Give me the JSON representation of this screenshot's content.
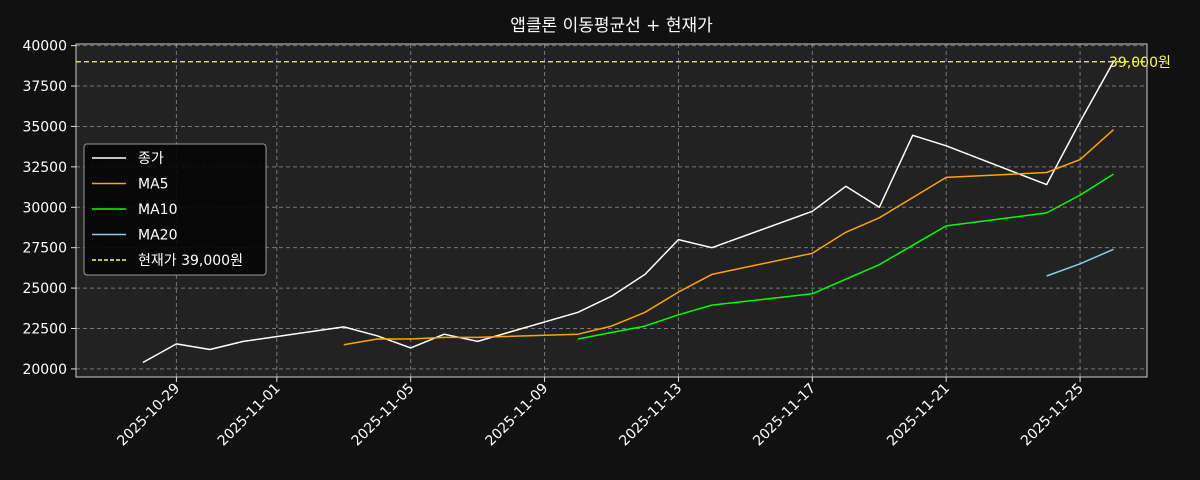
{
  "chart_data": {
    "type": "line",
    "title": "앱클론 이동평균선 + 현재가",
    "xlabel": "",
    "ylabel": "",
    "x_ticks": [
      "2025-10-29",
      "2025-11-01",
      "2025-11-05",
      "2025-11-09",
      "2025-11-13",
      "2025-11-17",
      "2025-11-21",
      "2025-11-25"
    ],
    "y_ticks": [
      20000,
      22500,
      25000,
      27500,
      30000,
      32500,
      35000,
      37500,
      40000
    ],
    "xlim": [
      "2025-10-26",
      "2025-11-27"
    ],
    "ylim": [
      19500,
      40100
    ],
    "grid": true,
    "legend_position": "center-left",
    "background": "#111111",
    "plot_background": "#222222",
    "series": [
      {
        "name": "종가",
        "color": "#ffffff",
        "points": [
          [
            "2025-10-28",
            20400
          ],
          [
            "2025-10-29",
            21550
          ],
          [
            "2025-10-30",
            21200
          ],
          [
            "2025-10-31",
            21700
          ],
          [
            "2025-11-03",
            22600
          ],
          [
            "2025-11-04",
            22050
          ],
          [
            "2025-11-05",
            21300
          ],
          [
            "2025-11-06",
            22150
          ],
          [
            "2025-11-07",
            21700
          ],
          [
            "2025-11-10",
            23500
          ],
          [
            "2025-11-11",
            24500
          ],
          [
            "2025-11-12",
            25850
          ],
          [
            "2025-11-13",
            28000
          ],
          [
            "2025-11-14",
            27500
          ],
          [
            "2025-11-17",
            29750
          ],
          [
            "2025-11-18",
            31300
          ],
          [
            "2025-11-19",
            30000
          ],
          [
            "2025-11-20",
            34450
          ],
          [
            "2025-11-21",
            33800
          ],
          [
            "2025-11-24",
            31400
          ],
          [
            "2025-11-25",
            35300
          ],
          [
            "2025-11-26",
            39000
          ]
        ]
      },
      {
        "name": "MA5",
        "color": "#ffa500",
        "points": [
          [
            "2025-11-03",
            21500
          ],
          [
            "2025-11-04",
            21850
          ],
          [
            "2025-11-05",
            21850
          ],
          [
            "2025-11-06",
            21950
          ],
          [
            "2025-11-07",
            21950
          ],
          [
            "2025-11-10",
            22150
          ],
          [
            "2025-11-11",
            22650
          ],
          [
            "2025-11-12",
            23500
          ],
          [
            "2025-11-13",
            24750
          ],
          [
            "2025-11-14",
            25850
          ],
          [
            "2025-11-17",
            27150
          ],
          [
            "2025-11-18",
            28450
          ],
          [
            "2025-11-19",
            29350
          ],
          [
            "2025-11-20",
            30600
          ],
          [
            "2025-11-21",
            31850
          ],
          [
            "2025-11-24",
            32150
          ],
          [
            "2025-11-25",
            32950
          ],
          [
            "2025-11-26",
            34800
          ]
        ]
      },
      {
        "name": "MA10",
        "color": "#00ff00",
        "points": [
          [
            "2025-11-10",
            21850
          ],
          [
            "2025-11-11",
            22250
          ],
          [
            "2025-11-12",
            22650
          ],
          [
            "2025-11-13",
            23350
          ],
          [
            "2025-11-14",
            23950
          ],
          [
            "2025-11-17",
            24650
          ],
          [
            "2025-11-18",
            25550
          ],
          [
            "2025-11-19",
            26450
          ],
          [
            "2025-11-20",
            27650
          ],
          [
            "2025-11-21",
            28850
          ],
          [
            "2025-11-24",
            29650
          ],
          [
            "2025-11-25",
            30750
          ],
          [
            "2025-11-26",
            32050
          ]
        ]
      },
      {
        "name": "MA20",
        "color": "#87ceeb",
        "points": [
          [
            "2025-11-24",
            25750
          ],
          [
            "2025-11-25",
            26500
          ],
          [
            "2025-11-26",
            27400
          ]
        ]
      }
    ],
    "hline": {
      "name": "현재가 39,000원",
      "value": 39000,
      "label": "39,000원",
      "color": "#ffff33",
      "style": "dashed"
    }
  }
}
